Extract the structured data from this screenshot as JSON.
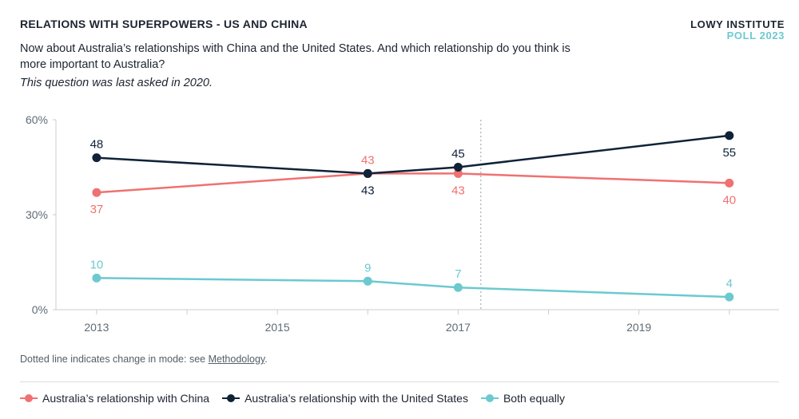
{
  "header": {
    "title": "RELATIONS WITH SUPERPOWERS - US AND CHINA",
    "brand_name": "LOWY INSTITUTE",
    "brand_poll": "POLL 2023",
    "question": "Now about Australia’s relationships with China and the United States. And which relationship do you think is more important to Australia?",
    "note": "This question was last asked in 2020."
  },
  "footer": {
    "footnote_prefix": "Dotted line indicates change in mode: see ",
    "footnote_link": "Methodology",
    "footnote_suffix": "."
  },
  "chart_data": {
    "type": "line",
    "x": [
      2013,
      2016,
      2017,
      2020
    ],
    "xticks": [
      "2013",
      "2015",
      "2017",
      "2019"
    ],
    "yticks": [
      "0%",
      "30%",
      "60%"
    ],
    "ylim": [
      0,
      60
    ],
    "grid": false,
    "mode_change_marker": "between 2017 and 2020 (dotted vertical line)",
    "legend_position": "bottom",
    "series": [
      {
        "name": "Australia’s relationship with China",
        "color": "#f07171",
        "values": [
          37,
          43,
          43,
          40
        ]
      },
      {
        "name": "Australia’s relationship with the United States",
        "color": "#0f2238",
        "values": [
          48,
          43,
          45,
          55
        ]
      },
      {
        "name": "Both equally",
        "color": "#6cc9cf",
        "values": [
          10,
          9,
          7,
          4
        ]
      }
    ]
  }
}
